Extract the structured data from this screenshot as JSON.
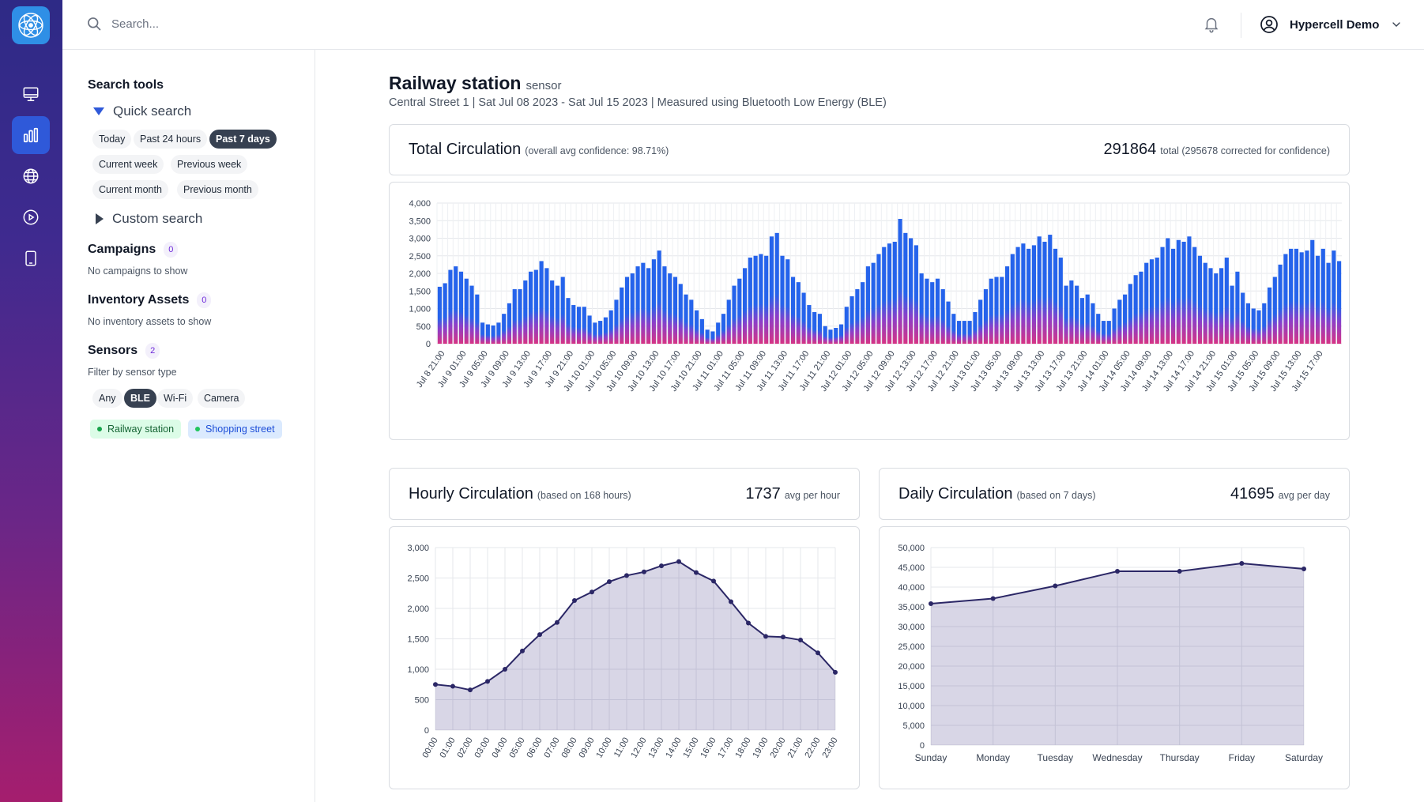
{
  "app": {
    "logo_icon": "atom-logo-icon"
  },
  "nav": [
    {
      "name": "monitor-icon",
      "active": false
    },
    {
      "name": "bar-chart-icon",
      "active": true
    },
    {
      "name": "globe-icon",
      "active": false
    },
    {
      "name": "play-circle-icon",
      "active": false
    },
    {
      "name": "tablet-icon",
      "active": false
    }
  ],
  "topbar": {
    "search_placeholder": "Search...",
    "user_name": "Hypercell Demo"
  },
  "sidebar": {
    "title": "Search tools",
    "quick_search": "Quick search",
    "quick_chips": [
      "Today",
      "Past 24 hours",
      "Past 7 days",
      "Current week",
      "Previous week",
      "Current month",
      "Previous month"
    ],
    "quick_selected": "Past 7 days",
    "custom_search": "Custom search",
    "campaigns": {
      "title": "Campaigns",
      "count": "0",
      "empty": "No campaigns to show"
    },
    "inventory": {
      "title": "Inventory Assets",
      "count": "0",
      "empty": "No inventory assets to show"
    },
    "sensors": {
      "title": "Sensors",
      "count": "2",
      "filter_label": "Filter by sensor type",
      "types": [
        "Any",
        "BLE",
        "Wi-Fi",
        "Camera"
      ],
      "type_selected": "BLE",
      "tags": [
        {
          "label": "Railway station",
          "color": "#16a34a"
        },
        {
          "label": "Shopping street",
          "color": "#2563eb"
        }
      ]
    }
  },
  "page": {
    "title": "Railway station",
    "title_suffix": "sensor",
    "subline": "Central Street 1 | Sat Jul 08 2023 - Sat Jul 15 2023 | Measured using Bluetooth Low Energy (BLE)"
  },
  "total": {
    "title": "Total Circulation",
    "note": "(overall avg confidence: 98.71%)",
    "value": "291864",
    "value_note": "total (295678 corrected for confidence)"
  },
  "hourly": {
    "title": "Hourly Circulation",
    "note": "(based on 168 hours)",
    "value": "1737",
    "value_note": "avg per hour"
  },
  "daily": {
    "title": "Daily Circulation",
    "note": "(based on 7 days)",
    "value": "41695",
    "value_note": "avg per day"
  },
  "chart_data": [
    {
      "type": "bar",
      "title": "Total Circulation",
      "ylim": [
        0,
        4000
      ],
      "yticks": [
        0,
        500,
        1000,
        1500,
        2000,
        2500,
        3000,
        3500,
        4000
      ],
      "x_start": "Jul 8 21:00",
      "x_step_hours": 2,
      "x_tick_labels": [
        "Jul 8 21:00",
        "Jul 9 01:00",
        "Jul 9 05:00",
        "Jul 9 09:00",
        "Jul 9 13:00",
        "Jul 9 17:00",
        "Jul 9 21:00",
        "Jul 10 01:00",
        "Jul 10 05:00",
        "Jul 10 09:00",
        "Jul 10 13:00",
        "Jul 10 17:00",
        "Jul 10 21:00",
        "Jul 11 01:00",
        "Jul 11 05:00",
        "Jul 11 09:00",
        "Jul 11 13:00",
        "Jul 11 17:00",
        "Jul 11 21:00",
        "Jul 12 01:00",
        "Jul 12 05:00",
        "Jul 12 09:00",
        "Jul 12 13:00",
        "Jul 12 17:00",
        "Jul 12 21:00",
        "Jul 13 01:00",
        "Jul 13 05:00",
        "Jul 13 09:00",
        "Jul 13 13:00",
        "Jul 13 17:00",
        "Jul 13 21:00",
        "Jul 14 01:00",
        "Jul 14 05:00",
        "Jul 14 09:00",
        "Jul 14 13:00",
        "Jul 14 17:00",
        "Jul 14 21:00",
        "Jul 15 01:00",
        "Jul 15 05:00",
        "Jul 15 09:00",
        "Jul 15 13:00",
        "Jul 15 17:00"
      ],
      "values": [
        1620,
        1720,
        2100,
        2200,
        2050,
        1850,
        1650,
        1400,
        600,
        550,
        520,
        600,
        850,
        1150,
        1550,
        1550,
        1800,
        2050,
        2100,
        2350,
        2150,
        1800,
        1650,
        1900,
        1300,
        1100,
        1050,
        1050,
        800,
        600,
        650,
        750,
        950,
        1250,
        1600,
        1900,
        2000,
        2200,
        2300,
        2150,
        2400,
        2650,
        2200,
        2000,
        1900,
        1700,
        1400,
        1250,
        950,
        700,
        400,
        350,
        600,
        850,
        1250,
        1650,
        1850,
        2150,
        2450,
        2500,
        2550,
        2500,
        3050,
        3150,
        2500,
        2400,
        1900,
        1750,
        1450,
        1100,
        900,
        850,
        500,
        400,
        450,
        550,
        1050,
        1350,
        1550,
        1750,
        2200,
        2300,
        2550,
        2750,
        2850,
        2900,
        3550,
        3150,
        3000,
        2800,
        2000,
        1850,
        1750,
        1850,
        1550,
        1200,
        850,
        650,
        650,
        650,
        900,
        1250,
        1550,
        1850,
        1900,
        1900,
        2200,
        2550,
        2750,
        2850,
        2700,
        2800,
        3050,
        2900,
        3100,
        2700,
        2450,
        1650,
        1800,
        1650,
        1300,
        1400,
        1150,
        850,
        650,
        650,
        1000,
        1250,
        1400,
        1700,
        1950,
        2050,
        2300,
        2400,
        2450,
        2750,
        3000,
        2700,
        2950,
        2900,
        3050,
        2750,
        2500,
        2300,
        2150,
        2000,
        2150,
        2450,
        1650,
        2050,
        1450,
        1150,
        1000,
        950,
        1150,
        1600,
        1900,
        2250,
        2550,
        2700,
        2700,
        2600,
        2650,
        2950,
        2500,
        2700,
        2300,
        2650,
        2350
      ]
    },
    {
      "type": "area",
      "title": "Hourly Circulation",
      "ylim": [
        0,
        3000
      ],
      "yticks": [
        0,
        500,
        1000,
        1500,
        2000,
        2500,
        3000
      ],
      "categories": [
        "00:00",
        "01:00",
        "02:00",
        "03:00",
        "04:00",
        "05:00",
        "06:00",
        "07:00",
        "08:00",
        "09:00",
        "10:00",
        "11:00",
        "12:00",
        "13:00",
        "14:00",
        "15:00",
        "16:00",
        "17:00",
        "18:00",
        "19:00",
        "20:00",
        "21:00",
        "22:00",
        "23:00"
      ],
      "values": [
        750,
        720,
        660,
        800,
        1000,
        1300,
        1570,
        1770,
        2130,
        2270,
        2440,
        2540,
        2600,
        2700,
        2770,
        2590,
        2450,
        2110,
        1760,
        1540,
        1530,
        1480,
        1270,
        950
      ]
    },
    {
      "type": "area",
      "title": "Daily Circulation",
      "ylim": [
        0,
        50000
      ],
      "yticks": [
        0,
        5000,
        10000,
        15000,
        20000,
        25000,
        30000,
        35000,
        40000,
        45000,
        50000
      ],
      "categories": [
        "Sunday",
        "Monday",
        "Tuesday",
        "Wednesday",
        "Thursday",
        "Friday",
        "Saturday"
      ],
      "values": [
        35800,
        37100,
        40300,
        44000,
        44000,
        46000,
        44600
      ]
    }
  ]
}
